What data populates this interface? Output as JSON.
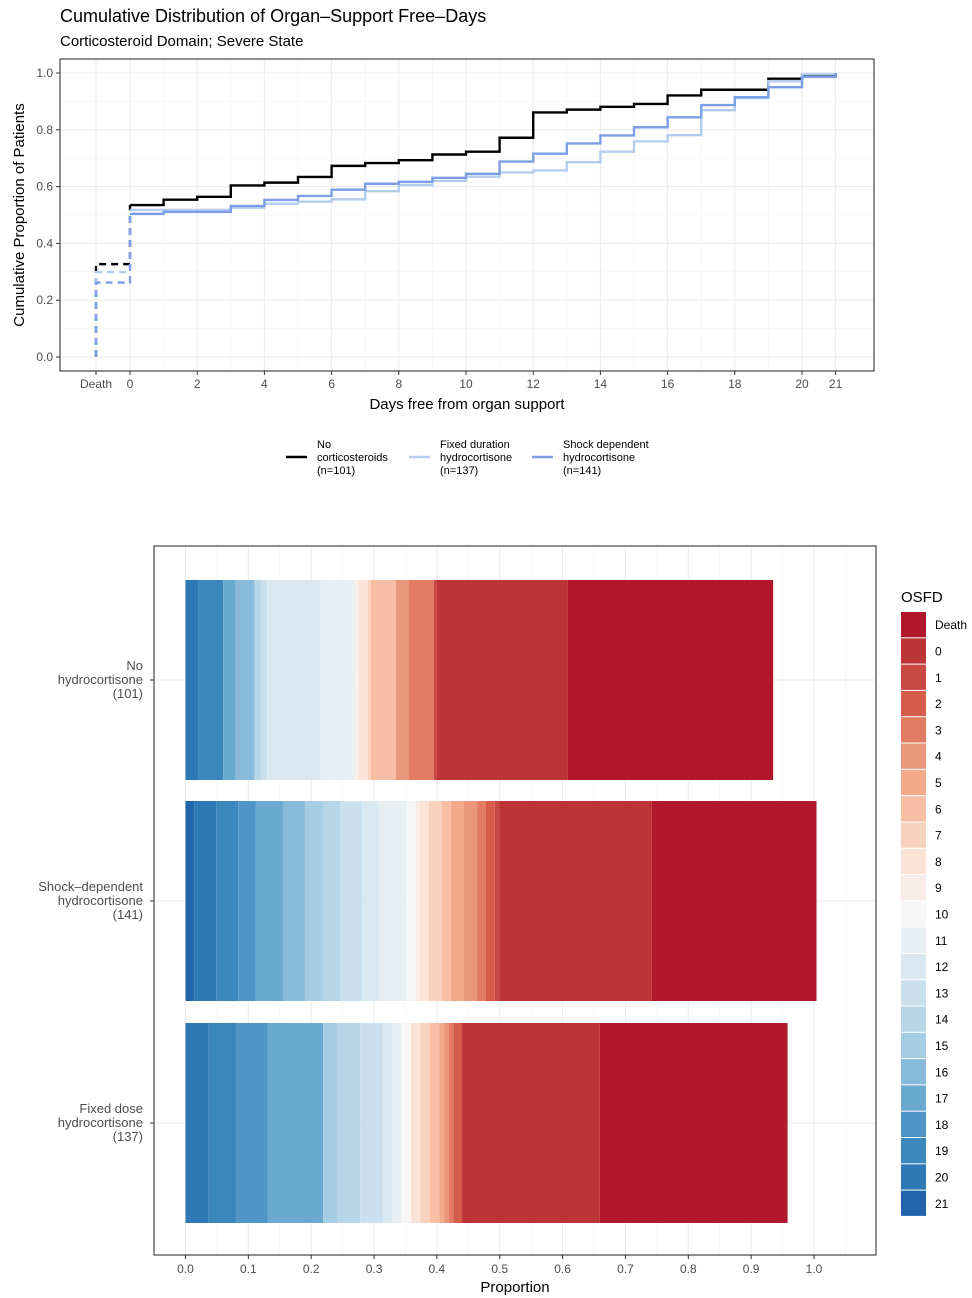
{
  "chart_data": [
    {
      "type": "line",
      "title": "Cumulative Distribution of Organ–Support Free–Days",
      "subtitle": "Corticosteroid Domain; Severe State",
      "xlabel": "Days free from organ support",
      "ylabel": "Cumulative Proportion of Patients",
      "x_ticks": [
        "Death",
        "0",
        "2",
        "4",
        "6",
        "8",
        "10",
        "12",
        "14",
        "16",
        "18",
        "20",
        "21"
      ],
      "y_ticks": [
        "0.0",
        "0.2",
        "0.4",
        "0.6",
        "0.8",
        "1.0"
      ],
      "ylim": [
        0,
        1
      ],
      "grid": true,
      "legend_position": "bottom",
      "x_categories": [
        "Death",
        0,
        1,
        2,
        3,
        4,
        5,
        6,
        7,
        8,
        9,
        10,
        11,
        12,
        13,
        14,
        15,
        16,
        17,
        18,
        19,
        20,
        21
      ],
      "series": [
        {
          "name": "No corticosteroids (n=101)",
          "legend_lines": [
            "No",
            "corticosteroids",
            "(n=101)"
          ],
          "color": "#000000",
          "values": [
            0.327,
            0.535,
            0.554,
            0.564,
            0.604,
            0.614,
            0.634,
            0.673,
            0.683,
            0.693,
            0.713,
            0.723,
            0.772,
            0.861,
            0.871,
            0.881,
            0.891,
            0.921,
            0.941,
            0.941,
            0.98,
            0.99,
            1.0
          ]
        },
        {
          "name": "Fixed duration hydrocortisone (n=137)",
          "legend_lines": [
            "Fixed duration",
            "hydrocortisone",
            "(n=137)"
          ],
          "color": "#b3cdf0",
          "values": [
            0.299,
            0.518,
            0.518,
            0.518,
            0.526,
            0.54,
            0.547,
            0.555,
            0.584,
            0.606,
            0.62,
            0.635,
            0.65,
            0.657,
            0.686,
            0.723,
            0.759,
            0.781,
            0.869,
            0.912,
            0.971,
            0.996,
            1.0
          ]
        },
        {
          "name": "Shock dependent hydrocortisone (n=141)",
          "legend_lines": [
            "Shock dependent",
            "hydrocortisone",
            "(n=141)"
          ],
          "color": "#7b9ee4",
          "values": [
            0.262,
            0.504,
            0.511,
            0.511,
            0.532,
            0.553,
            0.567,
            0.589,
            0.61,
            0.617,
            0.631,
            0.645,
            0.688,
            0.716,
            0.752,
            0.78,
            0.809,
            0.844,
            0.887,
            0.915,
            0.95,
            0.986,
            1.0
          ]
        }
      ]
    },
    {
      "type": "bar",
      "orientation": "horizontal-stacked",
      "xlabel": "Proportion",
      "x_ticks": [
        "0.0",
        "0.1",
        "0.2",
        "0.3",
        "0.4",
        "0.5",
        "0.6",
        "0.7",
        "0.8",
        "0.9",
        "1.0"
      ],
      "xlim": [
        0,
        1
      ],
      "grid": true,
      "legend_position": "right",
      "legend_title": "OSFD",
      "stack_order": [
        "21",
        "20",
        "19",
        "18",
        "17",
        "16",
        "15",
        "14",
        "13",
        "12",
        "11",
        "10",
        "9",
        "8",
        "7",
        "6",
        "5",
        "4",
        "3",
        "2",
        "1",
        "0",
        "Death"
      ],
      "legend": [
        {
          "label": "Death",
          "color": "#b2182b"
        },
        {
          "label": "0",
          "color": "#bd3437"
        },
        {
          "label": "1",
          "color": "#c84844"
        },
        {
          "label": "2",
          "color": "#d65d4c"
        },
        {
          "label": "3",
          "color": "#e17b61"
        },
        {
          "label": "4",
          "color": "#ea967a"
        },
        {
          "label": "5",
          "color": "#f4a98a"
        },
        {
          "label": "6",
          "color": "#f7bea3"
        },
        {
          "label": "7",
          "color": "#f9d2bd"
        },
        {
          "label": "8",
          "color": "#fbe3d6"
        },
        {
          "label": "9",
          "color": "#f8ede8"
        },
        {
          "label": "10",
          "color": "#f7f7f7"
        },
        {
          "label": "11",
          "color": "#e8eff3"
        },
        {
          "label": "12",
          "color": "#dae8f1"
        },
        {
          "label": "13",
          "color": "#cbe0ee"
        },
        {
          "label": "14",
          "color": "#b7d7e8"
        },
        {
          "label": "15",
          "color": "#a4cce3"
        },
        {
          "label": "16",
          "color": "#88bbda"
        },
        {
          "label": "17",
          "color": "#6aa9d0"
        },
        {
          "label": "18",
          "color": "#4f96c6"
        },
        {
          "label": "19",
          "color": "#3d87bf"
        },
        {
          "label": "20",
          "color": "#2e78b6"
        },
        {
          "label": "21",
          "color": "#2166ac"
        }
      ],
      "categories": [
        {
          "label_lines": [
            "No",
            "hydrocortisone",
            "(101)"
          ],
          "values": {
            "21": 0.0,
            "20": 0.02,
            "19": 0.04,
            "18": 0.0,
            "17": 0.02,
            "16": 0.03,
            "15": 0.0,
            "14": 0.01,
            "13": 0.01,
            "12": 0.085,
            "11": 0.055,
            "10": 0.0,
            "9": 0.005,
            "8": 0.015,
            "7": 0.005,
            "6": 0.04,
            "5": 0.0,
            "4": 0.02,
            "3": 0.04,
            "2": 0.0,
            "1": 0.005,
            "0": 0.208,
            "Death": 0.327
          }
        },
        {
          "label_lines": [
            "Shock–dependent",
            "hydrocortisone",
            "(141)"
          ],
          "values": {
            "21": 0.014,
            "20": 0.035,
            "19": 0.035,
            "18": 0.028,
            "17": 0.043,
            "16": 0.035,
            "15": 0.028,
            "14": 0.028,
            "13": 0.035,
            "12": 0.028,
            "11": 0.043,
            "10": 0.014,
            "9": 0.007,
            "8": 0.014,
            "7": 0.021,
            "6": 0.014,
            "5": 0.021,
            "4": 0.021,
            "3": 0.014,
            "2": 0.014,
            "1": 0.007,
            "0": 0.243,
            "Death": 0.262
          }
        },
        {
          "label_lines": [
            "Fixed dose",
            "hydrocortisone",
            "(137)"
          ],
          "values": {
            "21": 0.0,
            "20": 0.037,
            "19": 0.044,
            "18": 0.05,
            "17": 0.088,
            "16": 0.0,
            "15": 0.022,
            "14": 0.037,
            "13": 0.036,
            "12": 0.015,
            "11": 0.015,
            "10": 0.015,
            "9": 0.0,
            "8": 0.015,
            "7": 0.015,
            "6": 0.015,
            "5": 0.008,
            "4": 0.007,
            "3": 0.007,
            "2": 0.014,
            "1": 0.0,
            "0": 0.219,
            "Death": 0.299
          }
        }
      ]
    }
  ]
}
